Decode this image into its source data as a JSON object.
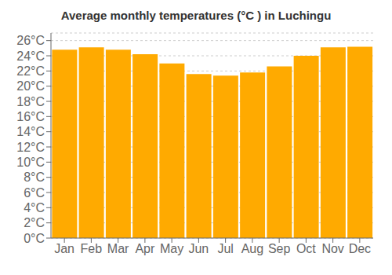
{
  "chart_data": {
    "type": "bar",
    "title": "Average monthly temperatures (°C ) in Luchingu",
    "categories": [
      "Jan",
      "Feb",
      "Mar",
      "Apr",
      "May",
      "Jun",
      "Jul",
      "Aug",
      "Sep",
      "Oct",
      "Nov",
      "Dec"
    ],
    "values": [
      24.8,
      25.1,
      24.8,
      24.2,
      23.0,
      21.6,
      21.4,
      21.8,
      22.6,
      24.0,
      25.1,
      25.2
    ],
    "color": "#FFAA00",
    "ylim": [
      0,
      27
    ],
    "yticks": [
      {
        "value": 0,
        "label": "0°C"
      },
      {
        "value": 2,
        "label": "2°C"
      },
      {
        "value": 4,
        "label": "4°C"
      },
      {
        "value": 6,
        "label": "6°C"
      },
      {
        "value": 8,
        "label": "8°C"
      },
      {
        "value": 10,
        "label": "10°C"
      },
      {
        "value": 12,
        "label": "12°C"
      },
      {
        "value": 14,
        "label": "14°C"
      },
      {
        "value": 16,
        "label": "16°C"
      },
      {
        "value": 18,
        "label": "18°C"
      },
      {
        "value": 20,
        "label": "20°C"
      },
      {
        "value": 22,
        "label": "22°C"
      },
      {
        "value": 24,
        "label": "24°C"
      },
      {
        "value": 26,
        "label": "26°C"
      }
    ],
    "grid": true
  }
}
